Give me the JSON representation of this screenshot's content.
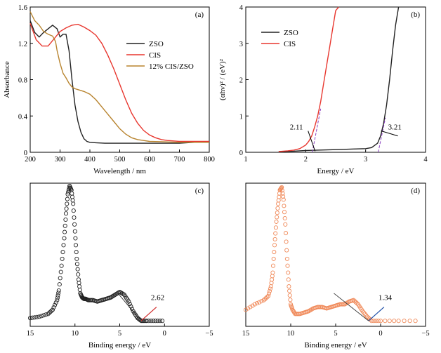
{
  "chart_data": [
    {
      "panel": "(a)",
      "type": "line",
      "xlabel": "Wavelength / nm",
      "ylabel": "Absorbance",
      "xlim": [
        200,
        800
      ],
      "ylim": [
        0,
        1.6
      ],
      "xticks": [
        "200",
        "300",
        "400",
        "500",
        "600",
        "700",
        "800"
      ],
      "yticks": [
        "0",
        "0.4",
        "0.8",
        "1.2",
        "1.6"
      ],
      "legend_position": "top-right",
      "series": [
        {
          "name": "ZSO",
          "color": "#222222",
          "x": [
            200,
            215,
            230,
            245,
            260,
            275,
            290,
            300,
            310,
            320,
            330,
            340,
            350,
            360,
            370,
            380,
            390,
            400,
            420,
            450,
            500,
            550,
            600,
            650,
            700,
            750,
            800
          ],
          "y": [
            1.45,
            1.32,
            1.27,
            1.32,
            1.36,
            1.4,
            1.36,
            1.27,
            1.3,
            1.3,
            1.12,
            0.8,
            0.52,
            0.34,
            0.22,
            0.15,
            0.12,
            0.11,
            0.105,
            0.1,
            0.1,
            0.1,
            0.1,
            0.1,
            0.1,
            0.11,
            0.11
          ]
        },
        {
          "name": "CIS",
          "color": "#e8372f",
          "x": [
            200,
            220,
            240,
            260,
            280,
            300,
            320,
            340,
            360,
            380,
            400,
            420,
            440,
            460,
            480,
            500,
            520,
            540,
            560,
            580,
            600,
            620,
            640,
            660,
            680,
            700,
            750,
            800
          ],
          "y": [
            1.42,
            1.24,
            1.17,
            1.17,
            1.25,
            1.33,
            1.37,
            1.4,
            1.41,
            1.38,
            1.34,
            1.29,
            1.2,
            1.07,
            0.92,
            0.75,
            0.58,
            0.43,
            0.32,
            0.24,
            0.19,
            0.16,
            0.14,
            0.13,
            0.125,
            0.12,
            0.12,
            0.12
          ]
        },
        {
          "name": "12% CIS/ZSO",
          "color": "#b8842f",
          "x": [
            200,
            215,
            230,
            245,
            260,
            275,
            285,
            290,
            300,
            310,
            320,
            330,
            340,
            350,
            360,
            380,
            400,
            420,
            440,
            460,
            480,
            500,
            520,
            540,
            560,
            580,
            600,
            650,
            700,
            750,
            800
          ],
          "y": [
            1.55,
            1.45,
            1.4,
            1.33,
            1.3,
            1.28,
            1.22,
            1.12,
            0.98,
            0.87,
            0.82,
            0.76,
            0.72,
            0.7,
            0.69,
            0.67,
            0.64,
            0.58,
            0.5,
            0.42,
            0.34,
            0.26,
            0.2,
            0.16,
            0.14,
            0.13,
            0.12,
            0.115,
            0.11,
            0.11,
            0.11
          ]
        }
      ]
    },
    {
      "panel": "(b)",
      "type": "line",
      "xlabel": "Energy / eV",
      "ylabel": "(αhν)² / (eV)²",
      "xlim": [
        1,
        4
      ],
      "ylim": [
        0,
        4
      ],
      "xticks": [
        "1",
        "2",
        "3",
        "4"
      ],
      "yticks": [
        "0",
        "1",
        "2",
        "3",
        "4"
      ],
      "legend_position": "top-left",
      "annotations": [
        {
          "text": "2.11",
          "x": 2.11
        },
        {
          "text": "3.21",
          "x": 3.21
        }
      ],
      "series": [
        {
          "name": "ZSO",
          "color": "#222222",
          "x": [
            1.55,
            1.8,
            2.0,
            2.2,
            2.4,
            2.6,
            2.8,
            3.0,
            3.1,
            3.2,
            3.25,
            3.3,
            3.35,
            3.4,
            3.45,
            3.5,
            3.55
          ],
          "y": [
            0.02,
            0.03,
            0.05,
            0.06,
            0.07,
            0.08,
            0.09,
            0.1,
            0.13,
            0.25,
            0.45,
            0.8,
            1.3,
            2.0,
            2.8,
            3.5,
            4.0
          ]
        },
        {
          "name": "CIS",
          "color": "#e8372f",
          "x": [
            1.55,
            1.7,
            1.8,
            1.9,
            2.0,
            2.05,
            2.1,
            2.15,
            2.2,
            2.25,
            2.3,
            2.35,
            2.4,
            2.45,
            2.5,
            2.55
          ],
          "y": [
            0.02,
            0.04,
            0.06,
            0.1,
            0.2,
            0.3,
            0.45,
            0.7,
            1.0,
            1.4,
            1.9,
            2.4,
            2.9,
            3.4,
            3.9,
            4.0
          ]
        }
      ]
    },
    {
      "panel": "(c)",
      "type": "scatter",
      "xlabel": "Binding energy / eV",
      "xlim": [
        15,
        -5
      ],
      "xticks": [
        "15",
        "10",
        "5",
        "0",
        "-5"
      ],
      "annotations": [
        {
          "text": "2.62",
          "x": 2.62
        }
      ],
      "series": [
        {
          "color": "#222222",
          "x": [
            15,
            14,
            13,
            12.5,
            12,
            11.8,
            11.5,
            11.2,
            11,
            10.8,
            10.6,
            10.4,
            10.2,
            10,
            9.8,
            9.6,
            9.4,
            9.2,
            9,
            8.8,
            8.5,
            8,
            7.5,
            7,
            6.5,
            6,
            5.5,
            5,
            4.5,
            4,
            3.5,
            3,
            2.6,
            2,
            1,
            0
          ],
          "y": [
            0.02,
            0.03,
            0.05,
            0.08,
            0.15,
            0.22,
            0.4,
            0.6,
            0.78,
            0.92,
            0.98,
            0.95,
            0.85,
            0.65,
            0.45,
            0.3,
            0.2,
            0.17,
            0.16,
            0.16,
            0.15,
            0.15,
            0.14,
            0.15,
            0.16,
            0.17,
            0.19,
            0.21,
            0.19,
            0.14,
            0.07,
            0.02,
            0.0,
            0.0,
            0.0,
            0.0
          ]
        }
      ]
    },
    {
      "panel": "(d)",
      "type": "scatter",
      "xlabel": "Binding energy / eV",
      "xlim": [
        15,
        -5
      ],
      "xticks": [
        "15",
        "10",
        "5",
        "0",
        "-5"
      ],
      "annotations": [
        {
          "text": "1.34",
          "x": 1.34
        }
      ],
      "series": [
        {
          "color": "#f08a5a",
          "x": [
            15,
            14,
            13,
            12.5,
            12.2,
            12,
            11.8,
            11.6,
            11.4,
            11.2,
            11,
            10.8,
            10.6,
            10.4,
            10.2,
            10,
            9.8,
            9.5,
            9,
            8.5,
            8,
            7.5,
            7,
            6.5,
            6,
            5.5,
            5,
            4.5,
            4,
            3.5,
            3,
            2.5,
            2,
            1.5,
            1,
            0,
            -2,
            -4.5
          ],
          "y": [
            0.08,
            0.12,
            0.15,
            0.18,
            0.25,
            0.35,
            0.55,
            0.72,
            0.85,
            0.95,
            0.97,
            0.88,
            0.7,
            0.45,
            0.25,
            0.12,
            0.08,
            0.05,
            0.05,
            0.06,
            0.07,
            0.09,
            0.1,
            0.1,
            0.09,
            0.1,
            0.11,
            0.12,
            0.12,
            0.14,
            0.15,
            0.12,
            0.07,
            0.03,
            0.0,
            0.0,
            0.0,
            0.0
          ]
        }
      ]
    }
  ]
}
